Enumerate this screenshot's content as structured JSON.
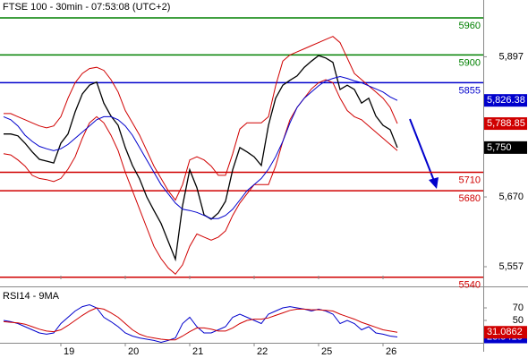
{
  "chart_data": [
    {
      "type": "line",
      "title": "FTSE 100 - 30min - 07:53:08 (UTC+2)",
      "x": [
        1,
        3,
        5,
        7,
        9,
        11,
        13,
        15,
        17,
        19,
        21,
        23,
        25,
        27,
        29,
        31,
        33,
        35,
        37,
        39,
        41,
        43,
        45,
        47,
        49,
        51,
        53,
        55,
        57,
        59,
        61,
        63,
        65,
        67,
        69,
        71,
        73,
        75,
        77,
        79,
        81,
        83,
        85,
        87,
        89,
        91,
        93,
        95,
        97,
        99,
        101,
        103,
        105,
        107,
        109,
        111
      ],
      "series": [
        {
          "color": "#000000",
          "values": [
            5772,
            5772,
            5769,
            5757,
            5743,
            5731,
            5728,
            5725,
            5757,
            5772,
            5808,
            5837,
            5851,
            5856,
            5822,
            5801,
            5786,
            5750,
            5721,
            5699,
            5670,
            5648,
            5627,
            5598,
            5569,
            5656,
            5714,
            5685,
            5641,
            5634,
            5644,
            5663,
            5714,
            5750,
            5743,
            5735,
            5721,
            5786,
            5830,
            5851,
            5859,
            5866,
            5880,
            5890,
            5899,
            5895,
            5888,
            5844,
            5851,
            5844,
            5822,
            5830,
            5801,
            5786,
            5779,
            5750
          ]
        },
        {
          "color": "#d00000",
          "values": [
            5805,
            5805,
            5800,
            5795,
            5790,
            5785,
            5782,
            5785,
            5800,
            5830,
            5855,
            5870,
            5878,
            5880,
            5875,
            5860,
            5840,
            5810,
            5790,
            5770,
            5745,
            5720,
            5700,
            5680,
            5665,
            5690,
            5730,
            5735,
            5730,
            5720,
            5705,
            5705,
            5740,
            5780,
            5790,
            5790,
            5790,
            5800,
            5850,
            5890,
            5900,
            5905,
            5910,
            5915,
            5920,
            5925,
            5930,
            5920,
            5895,
            5870,
            5860,
            5850,
            5840,
            5830,
            5815,
            5788.85
          ]
        },
        {
          "color": "#d00000",
          "values": [
            5740,
            5738,
            5730,
            5720,
            5705,
            5700,
            5698,
            5695,
            5700,
            5715,
            5735,
            5765,
            5790,
            5800,
            5790,
            5770,
            5745,
            5710,
            5680,
            5650,
            5620,
            5590,
            5570,
            5555,
            5545,
            5560,
            5590,
            5610,
            5605,
            5600,
            5605,
            5615,
            5640,
            5660,
            5675,
            5690,
            5690,
            5690,
            5720,
            5760,
            5795,
            5815,
            5830,
            5845,
            5855,
            5860,
            5855,
            5830,
            5810,
            5800,
            5795,
            5785,
            5775,
            5765,
            5755,
            5745
          ]
        },
        {
          "color": "#0000cc",
          "values": [
            5800,
            5795,
            5785,
            5770,
            5760,
            5752,
            5748,
            5745,
            5748,
            5755,
            5765,
            5775,
            5785,
            5795,
            5800,
            5800,
            5795,
            5785,
            5770,
            5750,
            5730,
            5710,
            5690,
            5675,
            5660,
            5650,
            5648,
            5645,
            5640,
            5635,
            5635,
            5640,
            5650,
            5665,
            5680,
            5690,
            5700,
            5715,
            5735,
            5760,
            5790,
            5815,
            5830,
            5840,
            5850,
            5858,
            5862,
            5865,
            5862,
            5858,
            5855,
            5850,
            5845,
            5840,
            5832,
            5826.38
          ]
        }
      ],
      "xlim": [
        0,
        135
      ],
      "xticks": [
        {
          "value": 17,
          "label": "19"
        },
        {
          "value": 35,
          "label": "20"
        },
        {
          "value": 53,
          "label": "21"
        },
        {
          "value": 71,
          "label": "22"
        },
        {
          "value": 89,
          "label": "25"
        },
        {
          "value": 107,
          "label": "26"
        }
      ],
      "ylim": [
        5528,
        5989
      ],
      "yticks": [
        {
          "value": 5557,
          "label": "5,557"
        },
        {
          "value": 5670,
          "label": "5,670"
        },
        {
          "value": 5897,
          "label": "5,897"
        }
      ],
      "levels": [
        {
          "value": 5960,
          "color": "#008000"
        },
        {
          "value": 5900,
          "color": "#008000"
        },
        {
          "value": 5855,
          "color": "#0000cc"
        },
        {
          "value": 5710,
          "color": "#d00000"
        },
        {
          "value": 5680,
          "color": "#d00000"
        },
        {
          "value": 5540,
          "color": "#d00000"
        }
      ],
      "price_tags": [
        {
          "value": 5826.38,
          "label": "5,826.38",
          "color": "#0000cc"
        },
        {
          "value": 5788.85,
          "label": "5,788.85",
          "color": "#d00000"
        },
        {
          "value": 5750,
          "label": "5,750",
          "color": "#000000"
        }
      ]
    },
    {
      "type": "line",
      "title": "RSI14 - 9MA",
      "x": [
        1,
        3,
        5,
        7,
        9,
        11,
        13,
        15,
        17,
        19,
        21,
        23,
        25,
        27,
        29,
        31,
        33,
        35,
        37,
        39,
        41,
        43,
        45,
        47,
        49,
        51,
        53,
        55,
        57,
        59,
        61,
        63,
        65,
        67,
        69,
        71,
        73,
        75,
        77,
        79,
        81,
        83,
        85,
        87,
        89,
        91,
        93,
        95,
        97,
        99,
        101,
        103,
        105,
        107,
        109,
        111
      ],
      "series": [
        {
          "color": "#0000cc",
          "values": [
            50,
            48,
            45,
            40,
            35,
            30,
            28,
            30,
            45,
            55,
            65,
            72,
            75,
            70,
            55,
            48,
            40,
            30,
            25,
            22,
            20,
            18,
            15,
            18,
            22,
            45,
            55,
            40,
            30,
            30,
            35,
            40,
            55,
            60,
            55,
            50,
            45,
            60,
            65,
            70,
            72,
            70,
            68,
            65,
            68,
            65,
            60,
            45,
            50,
            45,
            35,
            40,
            30,
            28,
            25,
            23.5418
          ]
        },
        {
          "color": "#d00000",
          "values": [
            48,
            47,
            46,
            44,
            40,
            36,
            33,
            32,
            35,
            42,
            50,
            58,
            65,
            70,
            68,
            62,
            55,
            45,
            35,
            28,
            24,
            22,
            20,
            19,
            19,
            25,
            32,
            38,
            38,
            36,
            33,
            33,
            38,
            45,
            50,
            52,
            52,
            54,
            58,
            62,
            66,
            68,
            68,
            67,
            67,
            66,
            65,
            60,
            56,
            52,
            47,
            43,
            39,
            35,
            33,
            31.0862
          ]
        }
      ],
      "xlim": [
        0,
        135
      ],
      "xticks": [
        {
          "value": 17,
          "label": "19"
        },
        {
          "value": 35,
          "label": "20"
        },
        {
          "value": 53,
          "label": "21"
        },
        {
          "value": 71,
          "label": "22"
        },
        {
          "value": 89,
          "label": "25"
        },
        {
          "value": 107,
          "label": "26"
        }
      ],
      "ylim": [
        0,
        100
      ],
      "yticks": [
        50,
        70
      ]
    }
  ]
}
